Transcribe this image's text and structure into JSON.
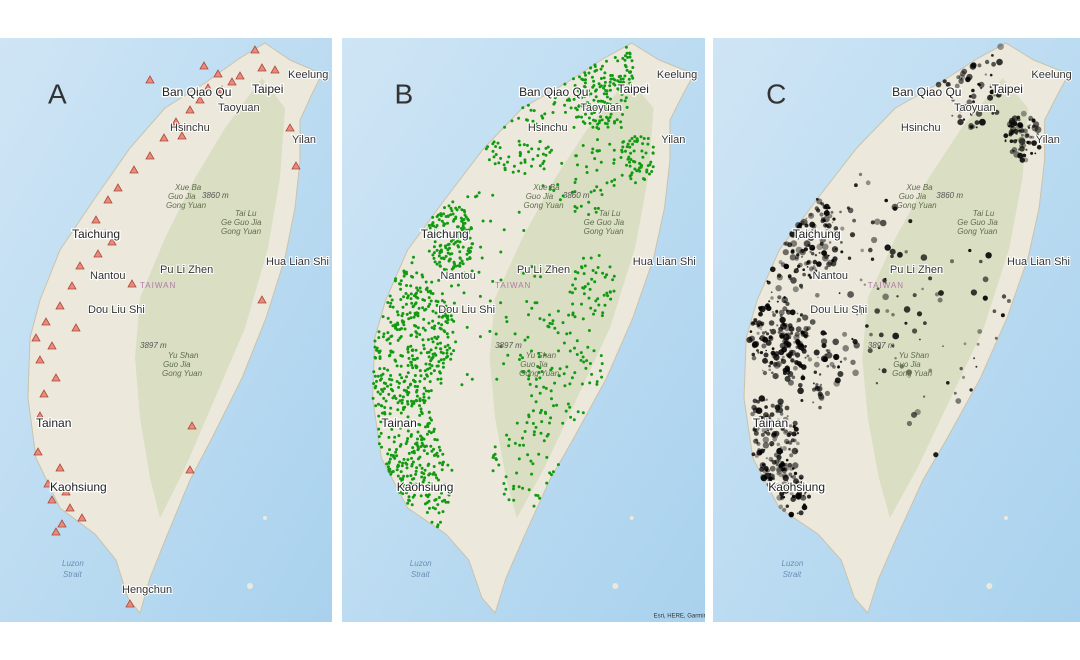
{
  "panels": [
    {
      "letter": "A",
      "labels": [
        "Keelung",
        "Ban Qiao Qu",
        "Taipei",
        "Taoyuan",
        "Hsinchu",
        "Yilan",
        "Xue Ba",
        "Guo Jia",
        "Gong Yuan",
        "3860 m",
        "Tai Lu",
        "Ge Guo Jia",
        "Gong Yuan",
        "Taichung",
        "Nantou",
        "Pu Li Zhen",
        "Hua Lian Shi",
        "TAIWAN",
        "Dou Liu Shi",
        "3897 m",
        "Yu Shan",
        "Guo Jia",
        "Gong Yuan",
        "Tainan",
        "Kaohsiung",
        "Luzon",
        "Strait",
        "Hengchun"
      ]
    },
    {
      "letter": "B",
      "labels": [
        "Keelung",
        "Ban Qiao Qu",
        "Taipei",
        "Taoyuan",
        "Hsinchu",
        "Yilan",
        "Xue Ba",
        "Guo Jia",
        "Gong Yuan",
        "3860 m",
        "Tai Lu",
        "Ge Guo Jia",
        "Gong Yuan",
        "Taichung",
        "Nantou",
        "Pu Li Zhen",
        "Hua Lian Shi",
        "TAIWAN",
        "Dou Liu Shi",
        "3897 m",
        "Yu Shan",
        "Guo Jia",
        "Gong Yuan",
        "Tainan",
        "Kaohsiung",
        "Luzon",
        "Strait",
        "Esri, HERE, Garmin, FA"
      ]
    },
    {
      "letter": "C",
      "labels": [
        "Keelung",
        "Ban Qiao Qu",
        "Taipei",
        "Taoyuan",
        "Hsinchu",
        "Yilan",
        "Xue Ba",
        "Guo Jia",
        "Gong Yuan",
        "3860 m",
        "Tai Lu",
        "Ge Guo Jia",
        "Gong Yuan",
        "Taichung",
        "Nantou",
        "Pu Li Zhen",
        "Hua Lian Shi",
        "TAIWAN",
        "Dou Liu Shi",
        "3897 m",
        "Yu Shan",
        "Guo Jia",
        "Gong Yuan",
        "Tainan",
        "Kaohsiung",
        "Luzon",
        "Strait"
      ]
    }
  ]
}
